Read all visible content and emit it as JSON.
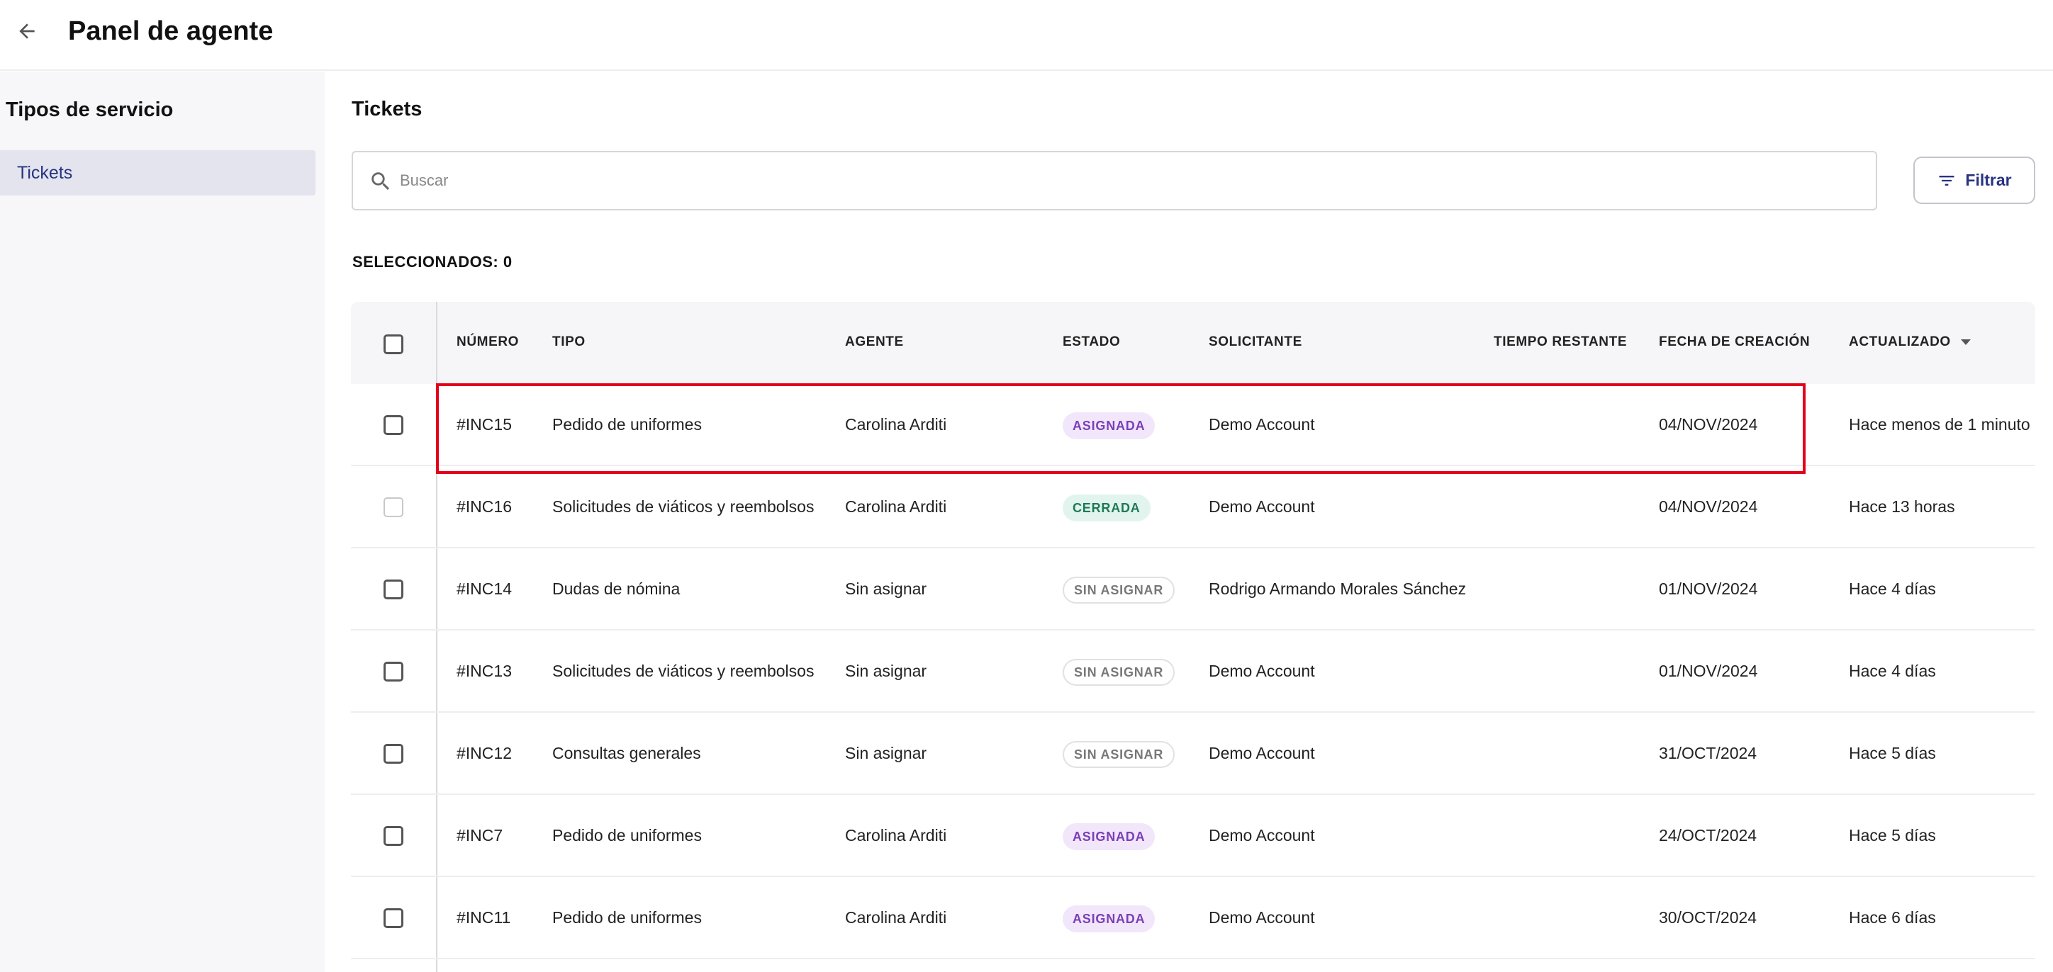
{
  "header": {
    "title": "Panel de agente"
  },
  "sidebar": {
    "title": "Tipos de servicio",
    "items": [
      {
        "label": "Tickets",
        "active": true
      }
    ]
  },
  "main": {
    "title": "Tickets",
    "search": {
      "placeholder": "Buscar",
      "value": ""
    },
    "filter_label": "Filtrar",
    "selected_label": "SELECCIONADOS: 0"
  },
  "table": {
    "columns": [
      "NÚMERO",
      "TIPO",
      "AGENTE",
      "ESTADO",
      "SOLICITANTE",
      "TIEMPO RESTANTE",
      "FECHA DE CREACIÓN",
      "ACTUALIZADO"
    ],
    "rows": [
      {
        "number": "#INC15",
        "type": "Pedido de uniformes",
        "agent": "Carolina Arditi",
        "status": "ASIGNADA",
        "status_kind": "asignada",
        "requester": "Demo Account",
        "remaining": "",
        "created": "04/NOV/2024",
        "updated": "Hace menos de 1 minuto",
        "selectable": true
      },
      {
        "number": "#INC16",
        "type": "Solicitudes de viáticos y reembolsos",
        "agent": "Carolina Arditi",
        "status": "CERRADA",
        "status_kind": "cerrada",
        "requester": "Demo Account",
        "remaining": "",
        "created": "04/NOV/2024",
        "updated": "Hace 13 horas",
        "selectable": false
      },
      {
        "number": "#INC14",
        "type": "Dudas de nómina",
        "agent": "Sin asignar",
        "status": "SIN ASIGNAR",
        "status_kind": "sinasignar",
        "requester": "Rodrigo Armando Morales Sánchez",
        "remaining": "",
        "created": "01/NOV/2024",
        "updated": "Hace 4 días",
        "selectable": true
      },
      {
        "number": "#INC13",
        "type": "Solicitudes de viáticos y reembolsos",
        "agent": "Sin asignar",
        "status": "SIN ASIGNAR",
        "status_kind": "sinasignar",
        "requester": "Demo Account",
        "remaining": "",
        "created": "01/NOV/2024",
        "updated": "Hace 4 días",
        "selectable": true
      },
      {
        "number": "#INC12",
        "type": "Consultas generales",
        "agent": "Sin asignar",
        "status": "SIN ASIGNAR",
        "status_kind": "sinasignar",
        "requester": "Demo Account",
        "remaining": "",
        "created": "31/OCT/2024",
        "updated": "Hace 5 días",
        "selectable": true
      },
      {
        "number": "#INC7",
        "type": "Pedido de uniformes",
        "agent": "Carolina Arditi",
        "status": "ASIGNADA",
        "status_kind": "asignada",
        "requester": "Demo Account",
        "remaining": "",
        "created": "24/OCT/2024",
        "updated": "Hace 5 días",
        "selectable": true
      },
      {
        "number": "#INC11",
        "type": "Pedido de uniformes",
        "agent": "Carolina Arditi",
        "status": "ASIGNADA",
        "status_kind": "asignada",
        "requester": "Demo Account",
        "remaining": "",
        "created": "30/OCT/2024",
        "updated": "Hace 6 días",
        "selectable": true
      }
    ]
  },
  "colors": {
    "accent": "#283381",
    "highlight": "#e3001b",
    "sidebar_active": "#e3e4ee"
  }
}
